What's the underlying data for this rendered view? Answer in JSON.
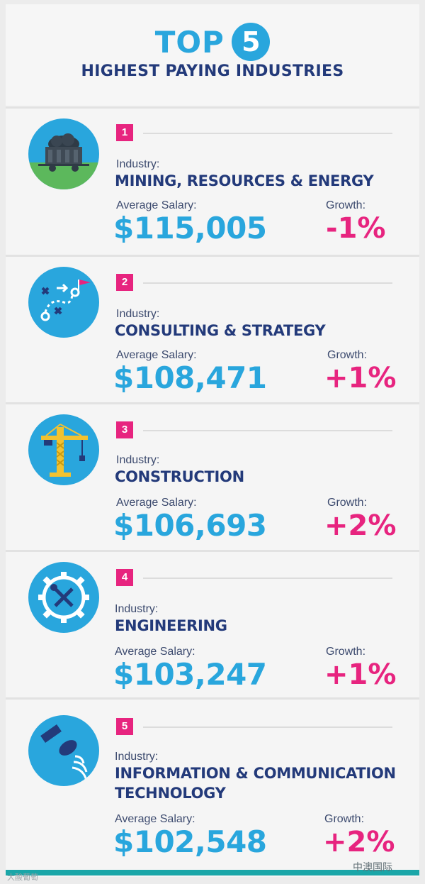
{
  "header": {
    "top_word": "TOP",
    "top_number": "5",
    "subtitle": "HIGHEST PAYING INDUSTRIES"
  },
  "labels": {
    "industry": "Industry:",
    "salary": "Average Salary:",
    "growth": "Growth:"
  },
  "industries": [
    {
      "rank": "1",
      "name_lines": [
        "MINING, RESOURCES & ENERGY"
      ],
      "salary": "$115,005",
      "growth": "-1%",
      "icon": "mine-cart-icon"
    },
    {
      "rank": "2",
      "name_lines": [
        "CONSULTING & STRATEGY"
      ],
      "salary": "$108,471",
      "growth": "+1%",
      "icon": "strategy-icon"
    },
    {
      "rank": "3",
      "name_lines": [
        "CONSTRUCTION"
      ],
      "salary": "$106,693",
      "growth": "+2%",
      "icon": "crane-icon"
    },
    {
      "rank": "4",
      "name_lines": [
        "ENGINEERING"
      ],
      "salary": "$103,247",
      "growth": "+1%",
      "icon": "gear-tools-icon"
    },
    {
      "rank": "5",
      "name_lines": [
        "INFORMATION & COMMUNICATION",
        "TECHNOLOGY"
      ],
      "salary": "$102,548",
      "growth": "+2%",
      "icon": "satellite-icon"
    }
  ],
  "watermark": {
    "left": "大酸葡萄",
    "right": "中澳国际"
  },
  "colors": {
    "blue": "#29a6dd",
    "navy": "#233a7a",
    "pink": "#e7247f",
    "teal": "#1aa6a8"
  }
}
